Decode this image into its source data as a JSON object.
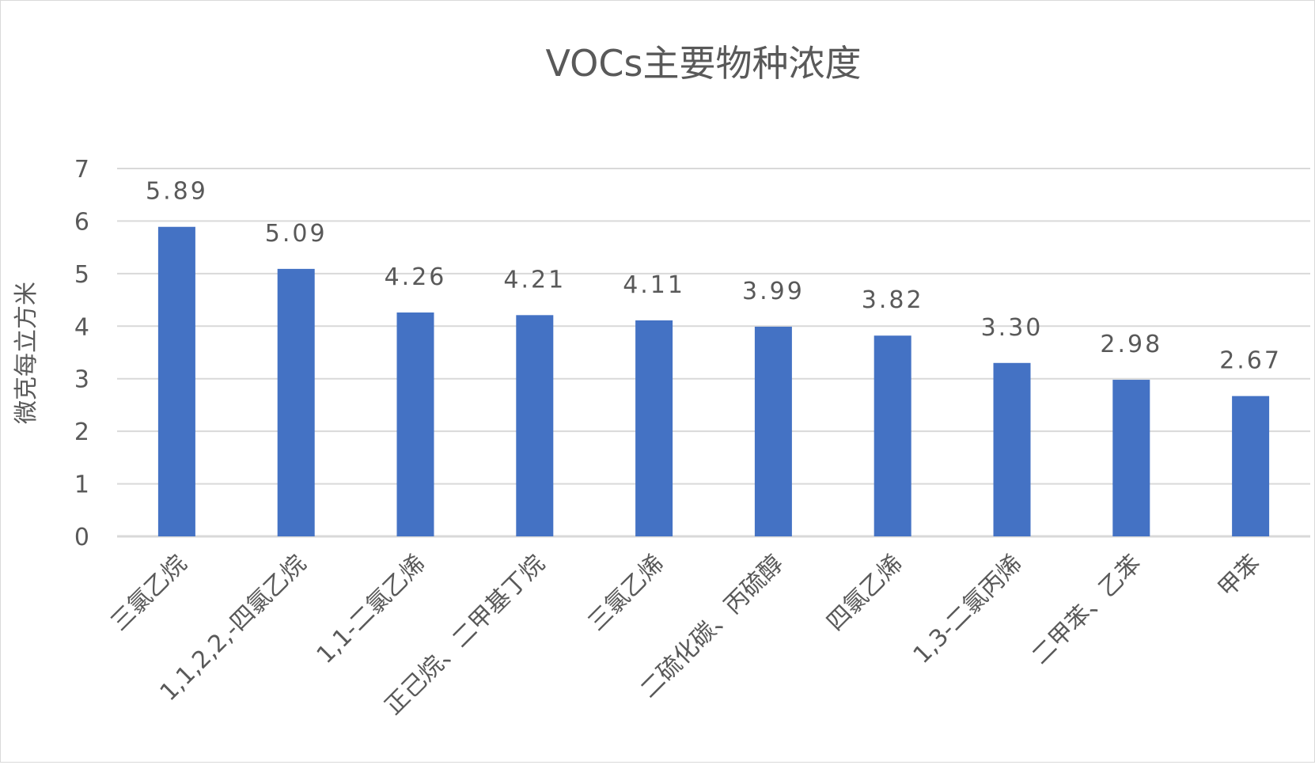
{
  "chart_data": {
    "type": "bar",
    "title": "VOCs主要物种浓度",
    "xlabel": "",
    "ylabel": "微克每立方米",
    "ylim": [
      0,
      7
    ],
    "yticks": [
      0,
      1,
      2,
      3,
      4,
      5,
      6,
      7
    ],
    "grid": true,
    "legend": "none",
    "bar_color": "#4472C4",
    "categories": [
      "三氯乙烷",
      "1,1,2,2,-四氯乙烷",
      "1,1-二氯乙烯",
      "正己烷、二甲基丁烷",
      "三氯乙烯",
      "二硫化碳、丙硫醇",
      "四氯乙烯",
      "1,3-二氯丙烯",
      "二甲苯、乙苯",
      "甲苯"
    ],
    "values": [
      5.89,
      5.09,
      4.26,
      4.21,
      4.11,
      3.99,
      3.82,
      3.3,
      2.98,
      2.67
    ],
    "data_labels": [
      "5.89",
      "5.09",
      "4.26",
      "4.21",
      "4.11",
      "3.99",
      "3.82",
      "3.30",
      "2.98",
      "2.67"
    ]
  }
}
